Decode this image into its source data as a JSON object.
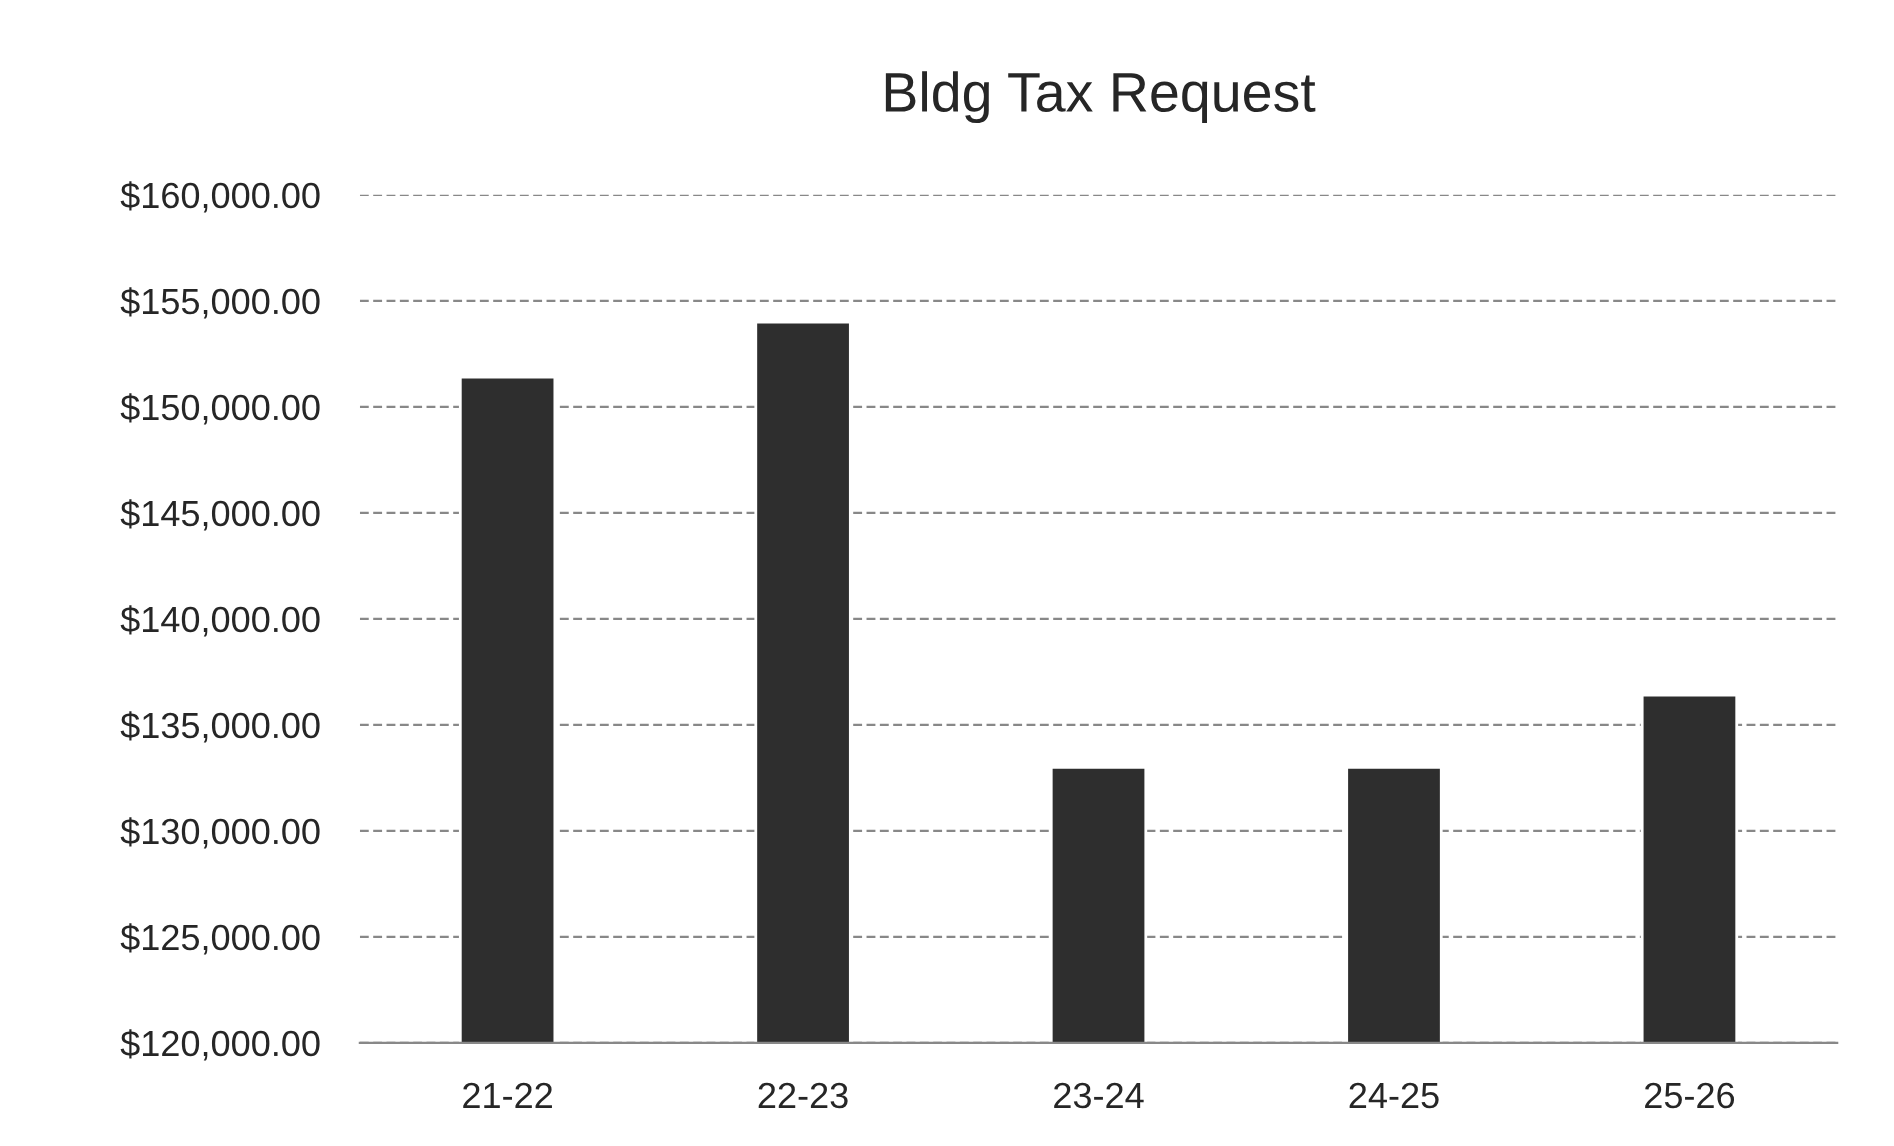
{
  "chart_data": {
    "type": "bar",
    "title": "Bldg Tax Request",
    "categories": [
      "21-22",
      "22-23",
      "23-24",
      "24-25",
      "25-26"
    ],
    "values": [
      151400,
      154000,
      133000,
      133000,
      136400
    ],
    "color": "#2e2e2e",
    "ylim": [
      120000,
      160000
    ],
    "yticks": [
      {
        "value": 120000,
        "label": "$120,000.00"
      },
      {
        "value": 125000,
        "label": "$125,000.00"
      },
      {
        "value": 130000,
        "label": "$130,000.00"
      },
      {
        "value": 135000,
        "label": "$135,000.00"
      },
      {
        "value": 140000,
        "label": "$140,000.00"
      },
      {
        "value": 145000,
        "label": "$145,000.00"
      },
      {
        "value": 150000,
        "label": "$150,000.00"
      },
      {
        "value": 155000,
        "label": "$155,000.00"
      },
      {
        "value": 160000,
        "label": "$160,000.00"
      }
    ],
    "grid": "y"
  }
}
